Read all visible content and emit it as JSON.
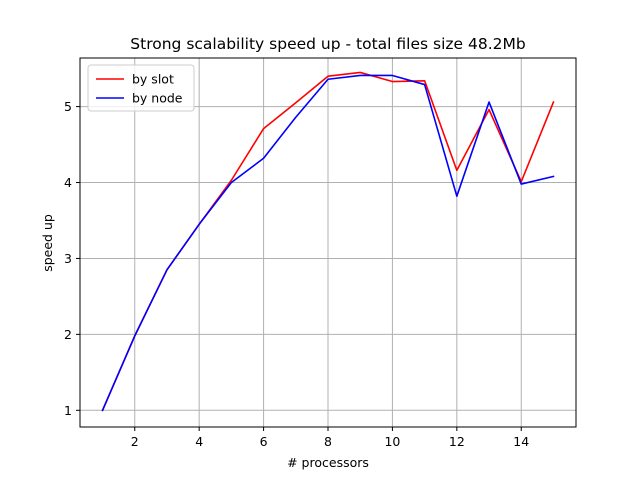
{
  "chart_data": {
    "type": "line",
    "title": "Strong scalability speed up - total files size 48.2Mb",
    "xlabel": "# processors",
    "ylabel": "speed up",
    "xlim": [
      0.3,
      15.7
    ],
    "ylim": [
      0.78,
      5.64
    ],
    "xticks": [
      2,
      4,
      6,
      8,
      10,
      12,
      14
    ],
    "yticks": [
      1,
      2,
      3,
      4,
      5
    ],
    "grid": true,
    "legend_position": "top-left",
    "series": [
      {
        "name": "by slot",
        "color": "#ff0000",
        "x": [
          1,
          2,
          3,
          4,
          5,
          6,
          7,
          8,
          9,
          10,
          11,
          12,
          13,
          14,
          15
        ],
        "y": [
          1.0,
          1.98,
          2.85,
          3.45,
          4.03,
          4.71,
          5.05,
          5.4,
          5.45,
          5.33,
          5.34,
          4.16,
          4.96,
          4.01,
          5.06
        ]
      },
      {
        "name": "by node",
        "color": "#0000ff",
        "x": [
          1,
          2,
          3,
          4,
          5,
          6,
          7,
          8,
          9,
          10,
          11,
          12,
          13,
          14,
          15
        ],
        "y": [
          1.0,
          1.98,
          2.85,
          3.45,
          4.0,
          4.32,
          4.86,
          5.36,
          5.41,
          5.41,
          5.29,
          3.82,
          5.06,
          3.98,
          4.08
        ]
      }
    ]
  }
}
